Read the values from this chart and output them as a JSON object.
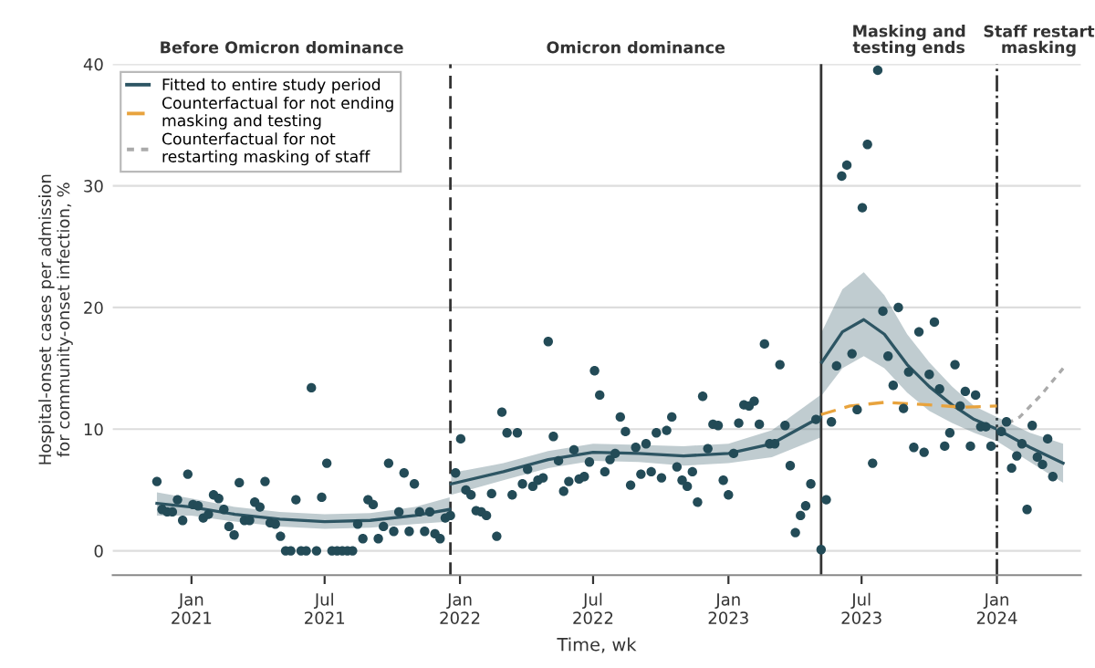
{
  "chart_data": {
    "type": "scatter",
    "xlabel": "Time, wk",
    "ylabel": "Hospital-onset cases per admission\nfor community-onset infection, %",
    "annotations": [
      "Before Omicron dominance",
      "Omicron dominance",
      "Masking and\ntesting ends",
      "Staff restart\nmasking"
    ],
    "xlim": [
      "2020-09-16",
      "2024-04-24"
    ],
    "xticks": [
      {
        "value": "2021-01-01",
        "label": "Jan\n2021"
      },
      {
        "value": "2021-07-01",
        "label": "Jul\n2021"
      },
      {
        "value": "2022-01-01",
        "label": "Jan\n2022"
      },
      {
        "value": "2022-07-01",
        "label": "Jul\n2022"
      },
      {
        "value": "2023-01-01",
        "label": "Jan\n2023"
      },
      {
        "value": "2023-07-01",
        "label": "Jul\n2023"
      },
      {
        "value": "2024-01-01",
        "label": "Jan\n2024"
      }
    ],
    "ylim": [
      -2,
      40
    ],
    "yticks": [
      0,
      10,
      20,
      30,
      40
    ],
    "grid": "y",
    "legend": "top left",
    "ref_lines": [
      {
        "axis": "x",
        "value": "2021-12-19",
        "line_style": "dashed",
        "color": "#333333"
      },
      {
        "axis": "x",
        "value": "2023-05-07",
        "line_style": "solid",
        "color": "#333333"
      },
      {
        "axis": "x",
        "value": "2024-01-01",
        "line_style": "dashdot",
        "color": "#333333"
      }
    ],
    "series": [
      {
        "color": "#234b57",
        "marker": "circle",
        "x": [
          "2020-11-15",
          "2020-11-22",
          "2020-11-29",
          "2020-12-06",
          "2020-12-13",
          "2020-12-20",
          "2020-12-27",
          "2021-01-03",
          "2021-01-10",
          "2021-01-17",
          "2021-01-24",
          "2021-01-31",
          "2021-02-07",
          "2021-02-14",
          "2021-02-21",
          "2021-02-28",
          "2021-03-07",
          "2021-03-14",
          "2021-03-21",
          "2021-03-28",
          "2021-04-04",
          "2021-04-11",
          "2021-04-18",
          "2021-04-25",
          "2021-05-02",
          "2021-05-09",
          "2021-05-16",
          "2021-05-23",
          "2021-05-30",
          "2021-06-06",
          "2021-06-13",
          "2021-06-20",
          "2021-06-27",
          "2021-07-04",
          "2021-07-11",
          "2021-07-18",
          "2021-07-25",
          "2021-08-01",
          "2021-08-08",
          "2021-08-15",
          "2021-08-22",
          "2021-08-29",
          "2021-09-05",
          "2021-09-12",
          "2021-09-19",
          "2021-09-26",
          "2021-10-03",
          "2021-10-10",
          "2021-10-17",
          "2021-10-24",
          "2021-10-31",
          "2021-11-07",
          "2021-11-14",
          "2021-11-21",
          "2021-11-28",
          "2021-12-05",
          "2021-12-12",
          "2021-12-19",
          "2021-12-26",
          "2022-01-02",
          "2022-01-09",
          "2022-01-16",
          "2022-01-23",
          "2022-01-30",
          "2022-02-06",
          "2022-02-13",
          "2022-02-20",
          "2022-02-27",
          "2022-03-06",
          "2022-03-13",
          "2022-03-20",
          "2022-03-27",
          "2022-04-03",
          "2022-04-10",
          "2022-04-17",
          "2022-04-24",
          "2022-05-01",
          "2022-05-08",
          "2022-05-15",
          "2022-05-22",
          "2022-05-29",
          "2022-06-05",
          "2022-06-12",
          "2022-06-19",
          "2022-06-26",
          "2022-07-03",
          "2022-07-10",
          "2022-07-17",
          "2022-07-24",
          "2022-07-31",
          "2022-08-07",
          "2022-08-14",
          "2022-08-21",
          "2022-08-28",
          "2022-09-04",
          "2022-09-11",
          "2022-09-18",
          "2022-09-25",
          "2022-10-02",
          "2022-10-09",
          "2022-10-16",
          "2022-10-23",
          "2022-10-30",
          "2022-11-06",
          "2022-11-13",
          "2022-11-20",
          "2022-11-27",
          "2022-12-04",
          "2022-12-11",
          "2022-12-18",
          "2022-12-25",
          "2023-01-01",
          "2023-01-08",
          "2023-01-15",
          "2023-01-22",
          "2023-01-29",
          "2023-02-05",
          "2023-02-12",
          "2023-02-19",
          "2023-02-26",
          "2023-03-05",
          "2023-03-12",
          "2023-03-19",
          "2023-03-26",
          "2023-04-02",
          "2023-04-09",
          "2023-04-16",
          "2023-04-23",
          "2023-04-30",
          "2023-05-07",
          "2023-05-14",
          "2023-05-21",
          "2023-05-28",
          "2023-06-04",
          "2023-06-11",
          "2023-06-18",
          "2023-06-25",
          "2023-07-02",
          "2023-07-09",
          "2023-07-16",
          "2023-07-23",
          "2023-07-30",
          "2023-08-06",
          "2023-08-13",
          "2023-08-20",
          "2023-08-27",
          "2023-09-03",
          "2023-09-10",
          "2023-09-17",
          "2023-09-24",
          "2023-10-01",
          "2023-10-08",
          "2023-10-15",
          "2023-10-22",
          "2023-10-29",
          "2023-11-05",
          "2023-11-12",
          "2023-11-19",
          "2023-11-26",
          "2023-12-03",
          "2023-12-10",
          "2023-12-17",
          "2023-12-24",
          "2024-01-07",
          "2024-01-14",
          "2024-01-21",
          "2024-01-28",
          "2024-02-04",
          "2024-02-11",
          "2024-02-18",
          "2024-02-25",
          "2024-03-03",
          "2024-03-10",
          "2024-03-17"
        ],
        "values": [
          5.7,
          3.4,
          3.2,
          3.2,
          4.2,
          2.5,
          6.3,
          3.8,
          3.7,
          2.7,
          3.0,
          4.6,
          4.3,
          3.4,
          2.0,
          1.3,
          5.6,
          2.5,
          2.5,
          4.0,
          3.6,
          5.7,
          2.3,
          2.2,
          1.2,
          0,
          0,
          4.2,
          0,
          0,
          13.4,
          0,
          4.4,
          7.2,
          0,
          0,
          0,
          0,
          0,
          2.2,
          1.0,
          4.2,
          3.8,
          1.0,
          2.0,
          7.2,
          1.6,
          3.2,
          6.4,
          1.6,
          5.5,
          3.2,
          1.6,
          3.2,
          1.4,
          1.0,
          2.7,
          2.9,
          6.4,
          9.2,
          5.0,
          4.6,
          3.3,
          3.2,
          2.9,
          4.7,
          1.2,
          11.4,
          9.7,
          4.6,
          9.7,
          5.5,
          6.7,
          5.3,
          5.8,
          6.0,
          17.2,
          9.4,
          7.4,
          4.9,
          5.7,
          8.3,
          5.9,
          6.1,
          7.3,
          14.8,
          12.8,
          6.5,
          7.5,
          8.0,
          11.0,
          9.8,
          5.4,
          8.5,
          6.3,
          8.8,
          6.5,
          9.7,
          6.0,
          9.9,
          11.0,
          6.9,
          5.8,
          5.3,
          6.5,
          4.0,
          12.7,
          8.4,
          10.4,
          10.3,
          5.8,
          4.6,
          8.0,
          10.5,
          12.0,
          11.9,
          12.3,
          10.4,
          17.0,
          8.8,
          8.8,
          15.3,
          10.3,
          7.0,
          1.5,
          2.9,
          3.7,
          5.5,
          10.8,
          0.1,
          4.2,
          10.6,
          15.2,
          30.8,
          31.7,
          16.2,
          11.6,
          28.2,
          33.4,
          7.2,
          39.5,
          19.7,
          16.0,
          13.6,
          20.0,
          11.7,
          14.7,
          8.5,
          18.0,
          8.1,
          14.5,
          18.8,
          13.3,
          8.6,
          9.7,
          15.3,
          11.9,
          13.1,
          8.6,
          12.8,
          10.2,
          10.2,
          8.6,
          9.8,
          10.6,
          6.8,
          7.8,
          8.8,
          3.4,
          10.3,
          7.7,
          7.1,
          9.2,
          6.1
        ]
      },
      {
        "type": "line",
        "name": "Fitted to entire study period",
        "color": "#2d5563",
        "line_style": "solid",
        "x": [
          "2020-11-15",
          "2021-01-01",
          "2021-03-01",
          "2021-05-01",
          "2021-07-01",
          "2021-09-01",
          "2021-11-01",
          "2021-12-18",
          "2021-12-19",
          "2021-12-20",
          "2022-03-01",
          "2022-05-01",
          "2022-07-01",
          "2022-09-01",
          "2022-11-01",
          "2023-01-01",
          "2023-03-01",
          "2023-05-06",
          "2023-05-07",
          "2023-05-08",
          "2023-06-05",
          "2023-07-04",
          "2023-08-01",
          "2023-09-01",
          "2023-10-01",
          "2023-11-01",
          "2023-12-01",
          "2024-01-01",
          "2024-02-15",
          "2024-03-31"
        ],
        "values": [
          3.9,
          3.6,
          3.0,
          2.6,
          2.4,
          2.5,
          2.9,
          3.4,
          null,
          5.5,
          6.5,
          7.5,
          8.1,
          8.0,
          7.8,
          8.0,
          8.8,
          11.0,
          null,
          15.5,
          18.0,
          19.0,
          17.8,
          15.3,
          13.5,
          12.0,
          10.8,
          10.0,
          8.5,
          7.2
        ],
        "lower": [
          2.9,
          2.9,
          2.4,
          2.0,
          1.8,
          1.9,
          2.2,
          2.4,
          null,
          4.6,
          5.8,
          6.8,
          7.4,
          7.3,
          7.0,
          7.2,
          7.7,
          9.3,
          null,
          12.8,
          15.0,
          16.0,
          15.0,
          13.0,
          11.5,
          10.5,
          9.7,
          9.0,
          7.3,
          5.6
        ],
        "upper": [
          4.8,
          4.3,
          3.6,
          3.2,
          3.0,
          3.1,
          3.6,
          4.4,
          null,
          6.4,
          7.2,
          8.2,
          8.8,
          8.7,
          8.6,
          8.8,
          9.9,
          12.8,
          null,
          18.0,
          21.5,
          22.9,
          21.0,
          17.8,
          15.5,
          13.5,
          11.9,
          11.0,
          9.7,
          8.8
        ]
      },
      {
        "type": "line",
        "name": "Counterfactual for not ending\nmasking and testing",
        "color": "#e8a33d",
        "line_style": "dashed",
        "x": [
          "2023-05-07",
          "2023-06-15",
          "2023-08-01",
          "2023-10-01",
          "2023-11-15",
          "2024-01-01"
        ],
        "values": [
          11.2,
          11.9,
          12.2,
          12.0,
          11.8,
          11.9
        ]
      },
      {
        "type": "line",
        "name": "Counterfactual for not\nrestarting masking of staff",
        "color": "#aaaaaa",
        "line_style": "dotted",
        "x": [
          "2024-01-01",
          "2024-02-01",
          "2024-03-01",
          "2024-03-31"
        ],
        "values": [
          10.0,
          11.0,
          12.8,
          15.0
        ]
      }
    ]
  }
}
